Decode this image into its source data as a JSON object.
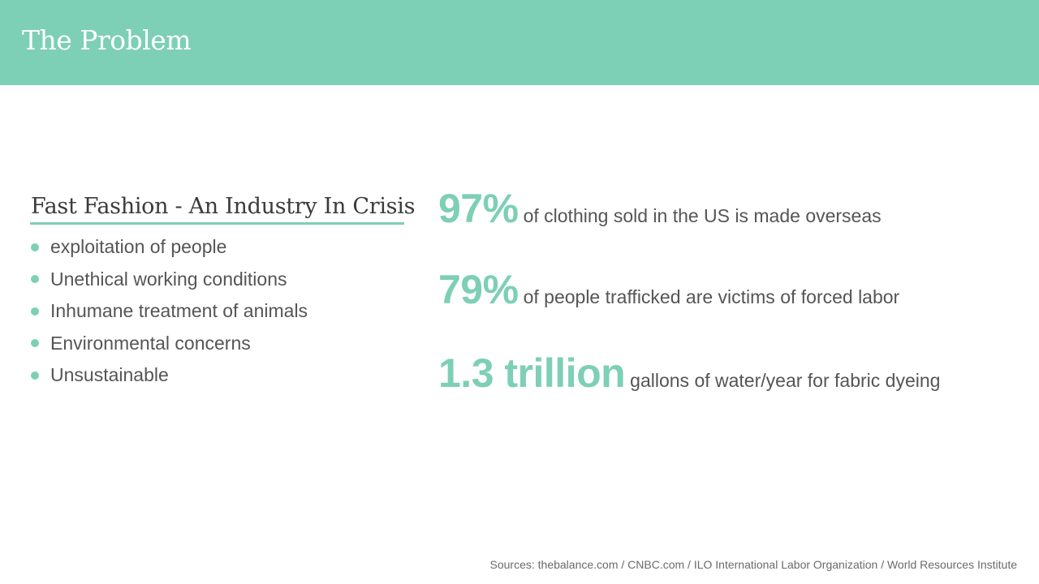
{
  "header": {
    "title": "The Problem"
  },
  "section": {
    "title": "Fast Fashion - An Industry In Crisis",
    "bullets": [
      "exploitation of people",
      "Unethical working conditions",
      "Inhumane treatment of animals",
      "Environmental concerns",
      "Unsustainable"
    ]
  },
  "stats": [
    {
      "value": "97%",
      "description": "of clothing sold in the US is made overseas"
    },
    {
      "value": "79%",
      "description": "of people trafficked are victims of forced labor"
    },
    {
      "value": "1.3 trillion",
      "description": "gallons of water/year for fabric dyeing"
    }
  ],
  "footer": {
    "sources": "Sources: thebalance.com / CNBC.com / ILO International Labor Organization / World Resources Institute"
  },
  "colors": {
    "accent": "#7dcfb6",
    "text": "#555555",
    "heading": "#3b3b3b"
  }
}
